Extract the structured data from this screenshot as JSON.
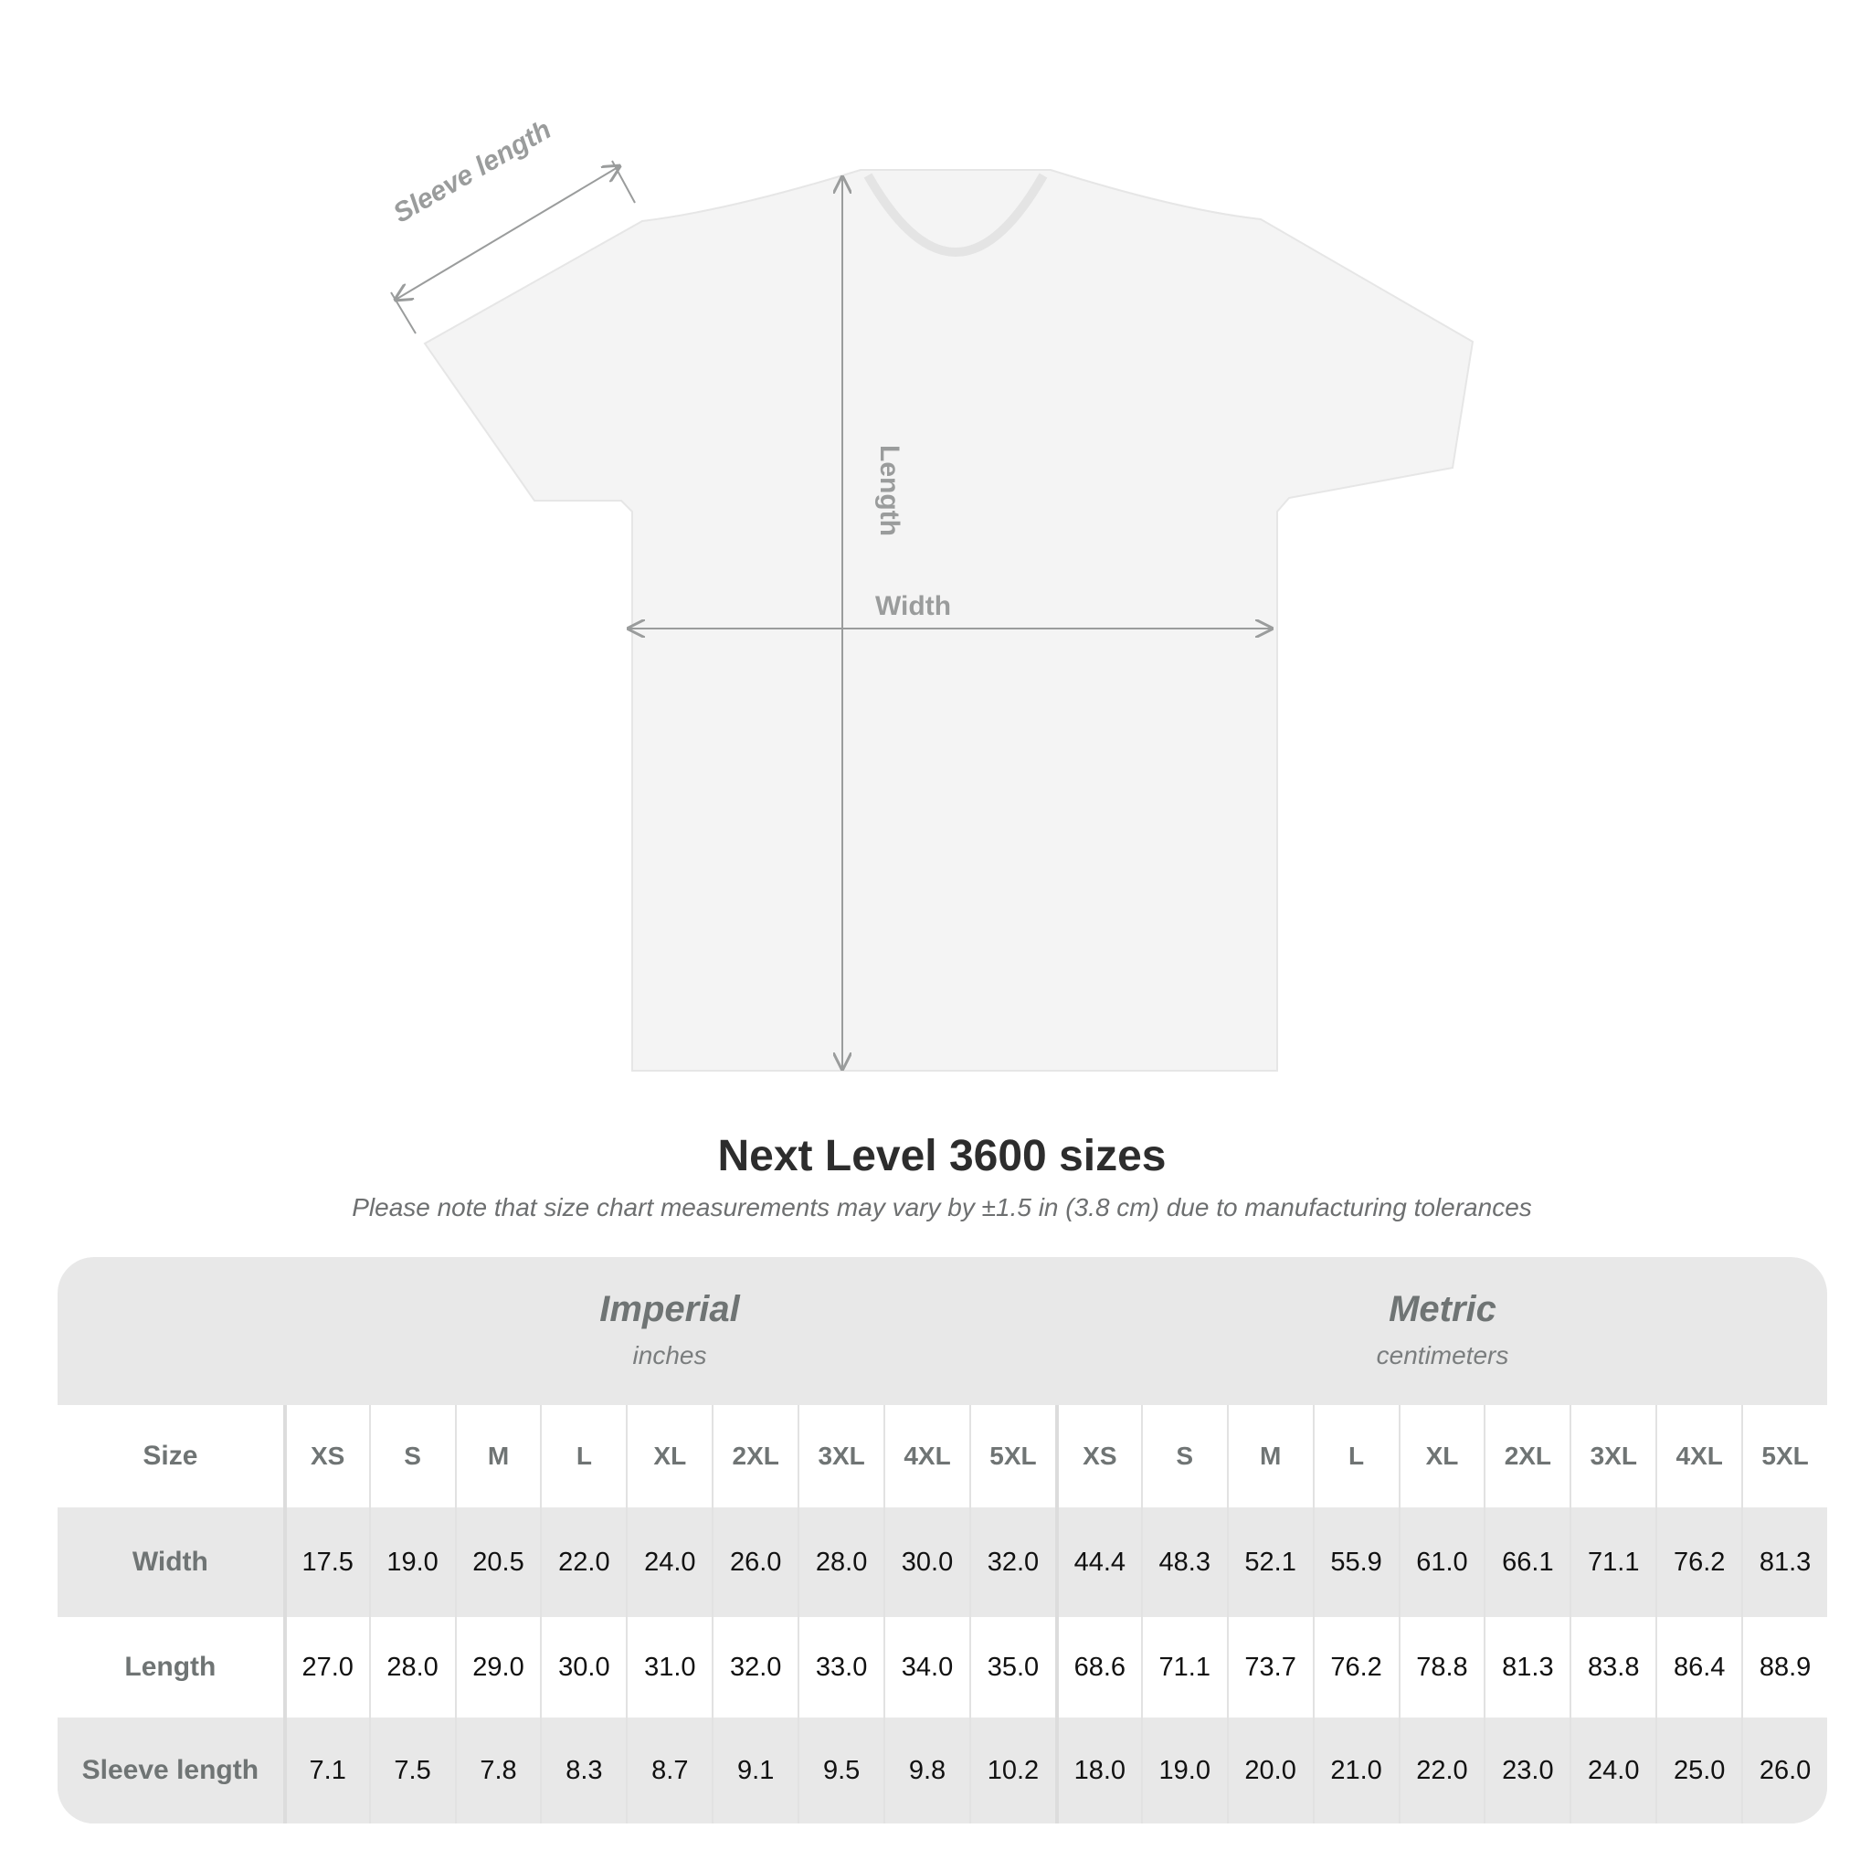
{
  "diagram": {
    "labels": {
      "sleeve": "Sleeve length",
      "length": "Length",
      "width": "Width"
    },
    "colors": {
      "shirt": "#f4f4f4",
      "measure_line": "#9a9c9c"
    }
  },
  "title": "Next Level 3600 sizes",
  "note": "Please note that size chart measurements may vary by ±1.5 in (3.8 cm) due to manufacturing tolerances",
  "table": {
    "imperial": {
      "label": "Imperial",
      "unit": "inches"
    },
    "metric": {
      "label": "Metric",
      "unit": "centimeters"
    },
    "size_label": "Size",
    "sizes": [
      "XS",
      "S",
      "M",
      "L",
      "XL",
      "2XL",
      "3XL",
      "4XL",
      "5XL"
    ],
    "rows": [
      {
        "label": "Width",
        "imperial": [
          "17.5",
          "19.0",
          "20.5",
          "22.0",
          "24.0",
          "26.0",
          "28.0",
          "30.0",
          "32.0"
        ],
        "metric": [
          "44.4",
          "48.3",
          "52.1",
          "55.9",
          "61.0",
          "66.1",
          "71.1",
          "76.2",
          "81.3"
        ]
      },
      {
        "label": "Length",
        "imperial": [
          "27.0",
          "28.0",
          "29.0",
          "30.0",
          "31.0",
          "32.0",
          "33.0",
          "34.0",
          "35.0"
        ],
        "metric": [
          "68.6",
          "71.1",
          "73.7",
          "76.2",
          "78.8",
          "81.3",
          "83.8",
          "86.4",
          "88.9"
        ]
      },
      {
        "label": "Sleeve length",
        "imperial": [
          "7.1",
          "7.5",
          "7.8",
          "8.3",
          "8.7",
          "9.1",
          "9.5",
          "9.8",
          "10.2"
        ],
        "metric": [
          "18.0",
          "19.0",
          "20.0",
          "21.0",
          "22.0",
          "23.0",
          "24.0",
          "25.0",
          "26.0"
        ]
      }
    ],
    "colors": {
      "header_bg": "#e8e8e8",
      "label_text": "#6f7474"
    }
  }
}
